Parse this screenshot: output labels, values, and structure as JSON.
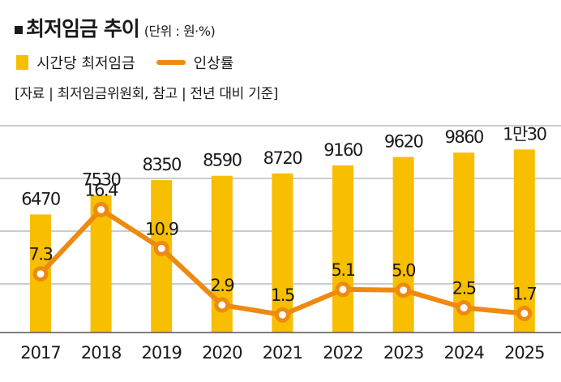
{
  "header": {
    "title": "최저임금 추이",
    "unit": "(단위 : 원·%)"
  },
  "legend": {
    "bar_label": "시간당 최저임금",
    "line_label": "인상률"
  },
  "source": "[자료 | 최저임금위원회, 참고 | 전년 대비 기준]",
  "colors": {
    "bar": "#f8be00",
    "line": "#ee8a10",
    "grid": "#9a9a9a",
    "axis": "#555555",
    "text": "#1a1a1a"
  },
  "chart_data": {
    "type": "bar",
    "title": "최저임금 추이",
    "categories": [
      "2017",
      "2018",
      "2019",
      "2020",
      "2021",
      "2022",
      "2023",
      "2024",
      "2025"
    ],
    "series": [
      {
        "name": "시간당 최저임금",
        "type": "bar",
        "values": [
          6470,
          7530,
          8350,
          8590,
          8720,
          9160,
          9620,
          9860,
          10030
        ],
        "labels": [
          "6470",
          "7530",
          "8350",
          "8590",
          "8720",
          "9160",
          "9620",
          "9860",
          "1만30"
        ]
      },
      {
        "name": "인상률",
        "type": "line",
        "values": [
          7.3,
          16.4,
          10.9,
          2.9,
          1.5,
          5.1,
          5.0,
          2.5,
          1.7
        ],
        "labels": [
          "7.3",
          "16.4",
          "10.9",
          "2.9",
          "1.5",
          "5.1",
          "5.0",
          "2.5",
          "1.7"
        ]
      }
    ],
    "bar_ylim": [
      0,
      12000
    ],
    "line_ylim": [
      -1,
      30
    ],
    "grid": true,
    "legend": "top-left",
    "xlabel": "",
    "ylabel": ""
  }
}
